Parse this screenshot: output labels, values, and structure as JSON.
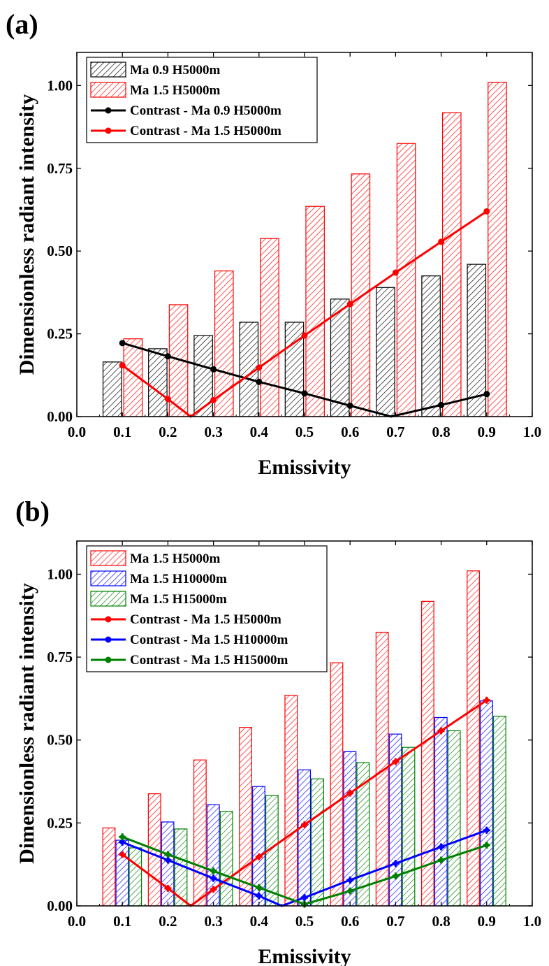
{
  "chart_data": [
    {
      "panel_label": "(a)",
      "type": "bar",
      "xlabel": "Emissivity",
      "ylabel": "Dimensionless radiant intensity",
      "xlim": [
        0.0,
        1.0
      ],
      "ylim": [
        0.0,
        1.1
      ],
      "xticks": [
        "0.0",
        "0.1",
        "0.2",
        "0.3",
        "0.4",
        "0.5",
        "0.6",
        "0.7",
        "0.8",
        "0.9",
        "1.0"
      ],
      "yticks": [
        "0.00",
        "0.25",
        "0.50",
        "0.75",
        "1.00"
      ],
      "categories": [
        0.1,
        0.2,
        0.3,
        0.4,
        0.5,
        0.6,
        0.7,
        0.8,
        0.9
      ],
      "bar_series": [
        {
          "name": "Ma 0.9 H5000m",
          "color": "#000000",
          "values": [
            0.165,
            0.205,
            0.245,
            0.285,
            0.285,
            0.355,
            0.39,
            0.425,
            0.46
          ]
        },
        {
          "name": "Ma 1.5 H5000m",
          "color": "#ff0000",
          "values": [
            0.235,
            0.338,
            0.44,
            0.538,
            0.635,
            0.733,
            0.825,
            0.918,
            1.01
          ]
        }
      ],
      "line_series": [
        {
          "name": "Contrast - Ma 0.9 H5000m",
          "color": "#000000",
          "x": [
            0.1,
            0.2,
            0.3,
            0.4,
            0.5,
            0.6,
            0.69,
            0.8,
            0.9
          ],
          "y": [
            0.222,
            0.182,
            0.143,
            0.105,
            0.07,
            0.033,
            0.0,
            0.035,
            0.068
          ]
        },
        {
          "name": "Contrast - Ma 1.5 H5000m",
          "color": "#ff0000",
          "x": [
            0.1,
            0.2,
            0.25,
            0.3,
            0.4,
            0.5,
            0.6,
            0.7,
            0.8,
            0.9
          ],
          "y": [
            0.155,
            0.053,
            0.0,
            0.05,
            0.148,
            0.245,
            0.34,
            0.435,
            0.528,
            0.62
          ]
        }
      ]
    },
    {
      "panel_label": "(b)",
      "type": "bar",
      "xlabel": "Emissivity",
      "ylabel": "Dimensionless radiant intensity",
      "xlim": [
        0.0,
        1.0
      ],
      "ylim": [
        0.0,
        1.1
      ],
      "xticks": [
        "0.0",
        "0.1",
        "0.2",
        "0.3",
        "0.4",
        "0.5",
        "0.6",
        "0.7",
        "0.8",
        "0.9",
        "1.0"
      ],
      "yticks": [
        "0.00",
        "0.25",
        "0.50",
        "0.75",
        "1.00"
      ],
      "categories": [
        0.1,
        0.2,
        0.3,
        0.4,
        0.5,
        0.6,
        0.7,
        0.8,
        0.9
      ],
      "bar_series": [
        {
          "name": "Ma 1.5 H5000m",
          "color": "#ff0000",
          "values": [
            0.235,
            0.338,
            0.44,
            0.538,
            0.635,
            0.733,
            0.825,
            0.918,
            1.01
          ]
        },
        {
          "name": "Ma 1.5 H10000m",
          "color": "#0000ff",
          "values": [
            0.198,
            0.253,
            0.305,
            0.36,
            0.41,
            0.465,
            0.518,
            0.568,
            0.618
          ]
        },
        {
          "name": "Ma 1.5 H15000m",
          "color": "#008000",
          "values": [
            0.175,
            0.232,
            0.285,
            0.333,
            0.383,
            0.432,
            0.478,
            0.528,
            0.572
          ]
        }
      ],
      "line_series": [
        {
          "name": "Contrast - Ma 1.5 H5000m",
          "color": "#ff0000",
          "x": [
            0.1,
            0.2,
            0.25,
            0.3,
            0.4,
            0.5,
            0.6,
            0.7,
            0.8,
            0.9
          ],
          "y": [
            0.155,
            0.053,
            0.0,
            0.05,
            0.148,
            0.245,
            0.34,
            0.435,
            0.528,
            0.62
          ]
        },
        {
          "name": "Contrast - Ma 1.5 H10000m",
          "color": "#0000ff",
          "x": [
            0.1,
            0.2,
            0.3,
            0.4,
            0.45,
            0.5,
            0.6,
            0.7,
            0.8,
            0.9
          ],
          "y": [
            0.192,
            0.138,
            0.083,
            0.03,
            0.0,
            0.025,
            0.078,
            0.128,
            0.178,
            0.228
          ]
        },
        {
          "name": "Contrast - Ma 1.5 H15000m",
          "color": "#008000",
          "x": [
            0.1,
            0.2,
            0.3,
            0.4,
            0.5,
            0.6,
            0.7,
            0.8,
            0.9
          ],
          "y": [
            0.208,
            0.155,
            0.105,
            0.055,
            0.005,
            0.045,
            0.09,
            0.138,
            0.183
          ]
        }
      ]
    }
  ]
}
